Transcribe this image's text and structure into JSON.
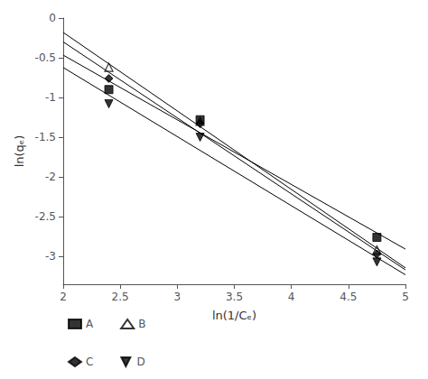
{
  "chart_data": {
    "type": "scatter",
    "xlabel": "ln(1/Cₑ)",
    "ylabel": "ln(qₑ)",
    "xlim": [
      2,
      5
    ],
    "ylim": [
      -3.35,
      0
    ],
    "xticks": [
      2,
      2.5,
      3,
      3.5,
      4,
      4.5,
      5
    ],
    "yticks": [
      -3,
      -2.5,
      -2,
      -1.5,
      -1,
      -0.5,
      0
    ],
    "grid": false,
    "legend": "lower left",
    "series": [
      {
        "name": "A",
        "color": "#000000",
        "marker": "square",
        "x": [
          2.4,
          3.2,
          4.75
        ],
        "values": [
          -0.9,
          -1.28,
          -2.76
        ],
        "fit_x": [
          2,
          5
        ],
        "fit_values": [
          -0.46686,
          -2.90784
        ]
      },
      {
        "name": "B",
        "color": "#000000",
        "marker": "triangle_open",
        "x": [
          2.4,
          3.2,
          4.75
        ],
        "values": [
          -0.62,
          -1.3,
          -2.92
        ],
        "fit_x": [
          2,
          5
        ],
        "fit_values": [
          -0.181109,
          -3.144332
        ]
      },
      {
        "name": "C",
        "color": "#000000",
        "marker": "diamond",
        "x": [
          2.4,
          3.2,
          4.75
        ],
        "values": [
          -0.76,
          -1.33,
          -2.97
        ],
        "fit_x": [
          2,
          5
        ],
        "fit_values": [
          -0.299899,
          -3.169075
        ]
      },
      {
        "name": "D",
        "color": "#000000",
        "marker": "triangle_down",
        "x": [
          2.4,
          3.2,
          4.75
        ],
        "values": [
          -1.08,
          -1.5,
          -3.07
        ],
        "fit_x": [
          2,
          5
        ],
        "fit_values": [
          -0.622773,
          -3.230829
        ]
      }
    ]
  }
}
